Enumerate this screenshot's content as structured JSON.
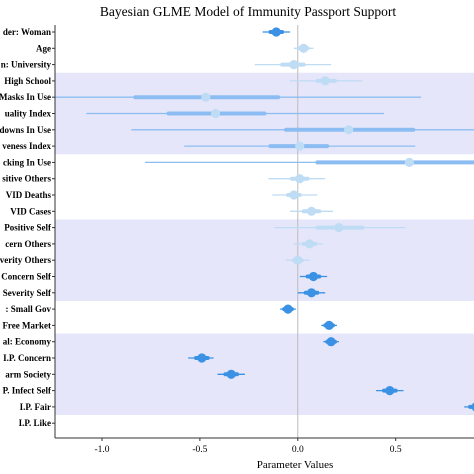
{
  "chart_data": {
    "type": "scatter",
    "title": "Bayesian GLME Model of Immunity Passport Support",
    "xlabel": "Parameter Values",
    "ylabel": "",
    "xlim": [
      -1.24,
      0.9
    ],
    "x_ticks": [
      -1.0,
      -0.5,
      0.0,
      0.5
    ],
    "x_tick_labels": [
      "-1.0",
      "-0.5",
      "0.0",
      "0.5"
    ],
    "zero_line": true,
    "grid": false,
    "colors": {
      "band": "#e6e6fa",
      "significant": "#3b92e4",
      "nonsignificant": "#bfdcf5",
      "wide_thin": "#8cbdf2",
      "wide_thick": "#8cbdf2",
      "zero_line": "#bbbbbb",
      "frame": "#333333"
    },
    "band_groups": [
      [
        3,
        7
      ],
      [
        12,
        16
      ],
      [
        19,
        23
      ]
    ],
    "series": [
      {
        "label": "der: Woman",
        "estimate": -0.11,
        "ci_inner": [
          -0.14,
          -0.08
        ],
        "ci_outer": [
          -0.18,
          -0.04
        ],
        "significant": true
      },
      {
        "label": "Age",
        "estimate": 0.03,
        "ci_inner": [
          0.01,
          0.05
        ],
        "ci_outer": [
          -0.02,
          0.08
        ],
        "significant": false
      },
      {
        "label": "n: University",
        "estimate": -0.02,
        "ci_inner": [
          -0.08,
          0.03
        ],
        "ci_outer": [
          -0.22,
          0.17
        ],
        "significant": false
      },
      {
        "label": "High School",
        "estimate": 0.14,
        "ci_inner": [
          0.1,
          0.19
        ],
        "ci_outer": [
          -0.04,
          0.33
        ],
        "significant": false
      },
      {
        "label": "Masks In Use",
        "estimate": -0.47,
        "ci_inner": [
          -0.83,
          -0.1
        ],
        "ci_outer": [
          -1.25,
          0.63
        ],
        "significant": false,
        "wide": true
      },
      {
        "label": "uality Index",
        "estimate": -0.42,
        "ci_inner": [
          -0.66,
          -0.17
        ],
        "ci_outer": [
          -1.08,
          0.44
        ],
        "significant": false,
        "wide": true
      },
      {
        "label": "downs In Use",
        "estimate": 0.26,
        "ci_inner": [
          -0.06,
          0.59
        ],
        "ci_outer": [
          -0.85,
          0.95
        ],
        "significant": false,
        "wide": true
      },
      {
        "label": "veness Index",
        "estimate": 0.01,
        "ci_inner": [
          -0.14,
          0.15
        ],
        "ci_outer": [
          -0.58,
          0.6
        ],
        "significant": false,
        "wide": true
      },
      {
        "label": "cking In Use",
        "estimate": 0.57,
        "ci_inner": [
          0.1,
          0.95
        ],
        "ci_outer": [
          -0.78,
          0.95
        ],
        "significant": false,
        "wide": true
      },
      {
        "label": "sitive Others",
        "estimate": 0.01,
        "ci_inner": [
          -0.03,
          0.05
        ],
        "ci_outer": [
          -0.15,
          0.14
        ],
        "significant": false
      },
      {
        "label": "VID Deaths",
        "estimate": -0.02,
        "ci_inner": [
          -0.05,
          0.01
        ],
        "ci_outer": [
          -0.13,
          0.1
        ],
        "significant": false
      },
      {
        "label": "VID Cases",
        "estimate": 0.07,
        "ci_inner": [
          0.03,
          0.11
        ],
        "ci_outer": [
          -0.04,
          0.18
        ],
        "significant": false
      },
      {
        "label": "Positive Self",
        "estimate": 0.21,
        "ci_inner": [
          0.1,
          0.33
        ],
        "ci_outer": [
          -0.12,
          0.55
        ],
        "significant": false
      },
      {
        "label": "cern Others",
        "estimate": 0.06,
        "ci_inner": [
          0.03,
          0.09
        ],
        "ci_outer": [
          -0.02,
          0.13
        ],
        "significant": false
      },
      {
        "label": "verity Others",
        "estimate": 0.0,
        "ci_inner": [
          -0.02,
          0.02
        ],
        "ci_outer": [
          -0.06,
          0.06
        ],
        "significant": false
      },
      {
        "label": "Concern Self",
        "estimate": 0.08,
        "ci_inner": [
          0.05,
          0.11
        ],
        "ci_outer": [
          0.01,
          0.15
        ],
        "significant": true
      },
      {
        "label": "Severity Self",
        "estimate": 0.07,
        "ci_inner": [
          0.04,
          0.1
        ],
        "ci_outer": [
          0.0,
          0.14
        ],
        "significant": true
      },
      {
        "label": ": Small Gov",
        "estimate": -0.05,
        "ci_inner": [
          -0.07,
          -0.03
        ],
        "ci_outer": [
          -0.09,
          -0.01
        ],
        "significant": true
      },
      {
        "label": "Free Market",
        "estimate": 0.16,
        "ci_inner": [
          0.14,
          0.18
        ],
        "ci_outer": [
          0.12,
          0.2
        ],
        "significant": true
      },
      {
        "label": "al: Economy",
        "estimate": 0.17,
        "ci_inner": [
          0.15,
          0.19
        ],
        "ci_outer": [
          0.13,
          0.21
        ],
        "significant": true
      },
      {
        "label": "I.P. Concern",
        "estimate": -0.49,
        "ci_inner": [
          -0.52,
          -0.46
        ],
        "ci_outer": [
          -0.56,
          -0.43
        ],
        "significant": true
      },
      {
        "label": "arm Society",
        "estimate": -0.34,
        "ci_inner": [
          -0.37,
          -0.31
        ],
        "ci_outer": [
          -0.41,
          -0.27
        ],
        "significant": true
      },
      {
        "label": "P. Infect Self",
        "estimate": 0.47,
        "ci_inner": [
          0.44,
          0.5
        ],
        "ci_outer": [
          0.4,
          0.54
        ],
        "significant": true
      },
      {
        "label": "I.P. Fair",
        "estimate": 0.91,
        "ci_inner": [
          0.88,
          0.94
        ],
        "ci_outer": [
          0.85,
          0.97
        ],
        "significant": true
      },
      {
        "label": "I.P. Like",
        "estimate": null,
        "ci_inner": null,
        "ci_outer": null,
        "significant": true
      }
    ]
  }
}
